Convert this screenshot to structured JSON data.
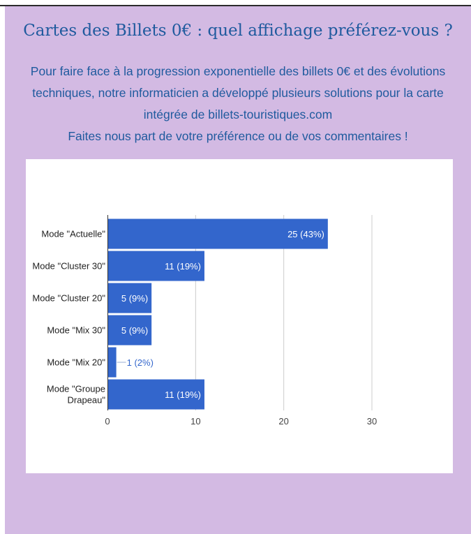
{
  "page": {
    "title": "Cartes des Billets 0€ : quel affichage préférez-vous ?",
    "intro_lines": [
      "Pour faire face à la progression exponentielle des billets 0€ et des évolutions",
      "techniques, notre informaticien a développé plusieurs solutions pour la carte",
      "intégrée de billets-touristiques.com",
      "Faites nous part de votre préférence ou de vos commentaires !"
    ]
  },
  "colors": {
    "panel_bg": "#d3bae3",
    "title_text": "#1f5a9e",
    "bar": "#3366cc",
    "grid": "#cccccc"
  },
  "chart_data": {
    "type": "bar",
    "orientation": "horizontal",
    "categories": [
      [
        "Mode \"Actuelle\""
      ],
      [
        "Mode \"Cluster 30\""
      ],
      [
        "Mode \"Cluster 20\""
      ],
      [
        "Mode \"Mix 30\""
      ],
      [
        "Mode \"Mix 20\""
      ],
      [
        "Mode \"Groupe",
        "Drapeau\""
      ]
    ],
    "values": [
      25,
      11,
      5,
      5,
      1,
      11
    ],
    "data_labels": [
      "25 (43%)",
      "11 (19%)",
      "5 (9%)",
      "5 (9%)",
      "1 (2%)",
      "11 (19%)"
    ],
    "xlim": [
      0,
      30
    ],
    "xticks": [
      0,
      10,
      20,
      30
    ],
    "grid": true,
    "legend": "none"
  }
}
